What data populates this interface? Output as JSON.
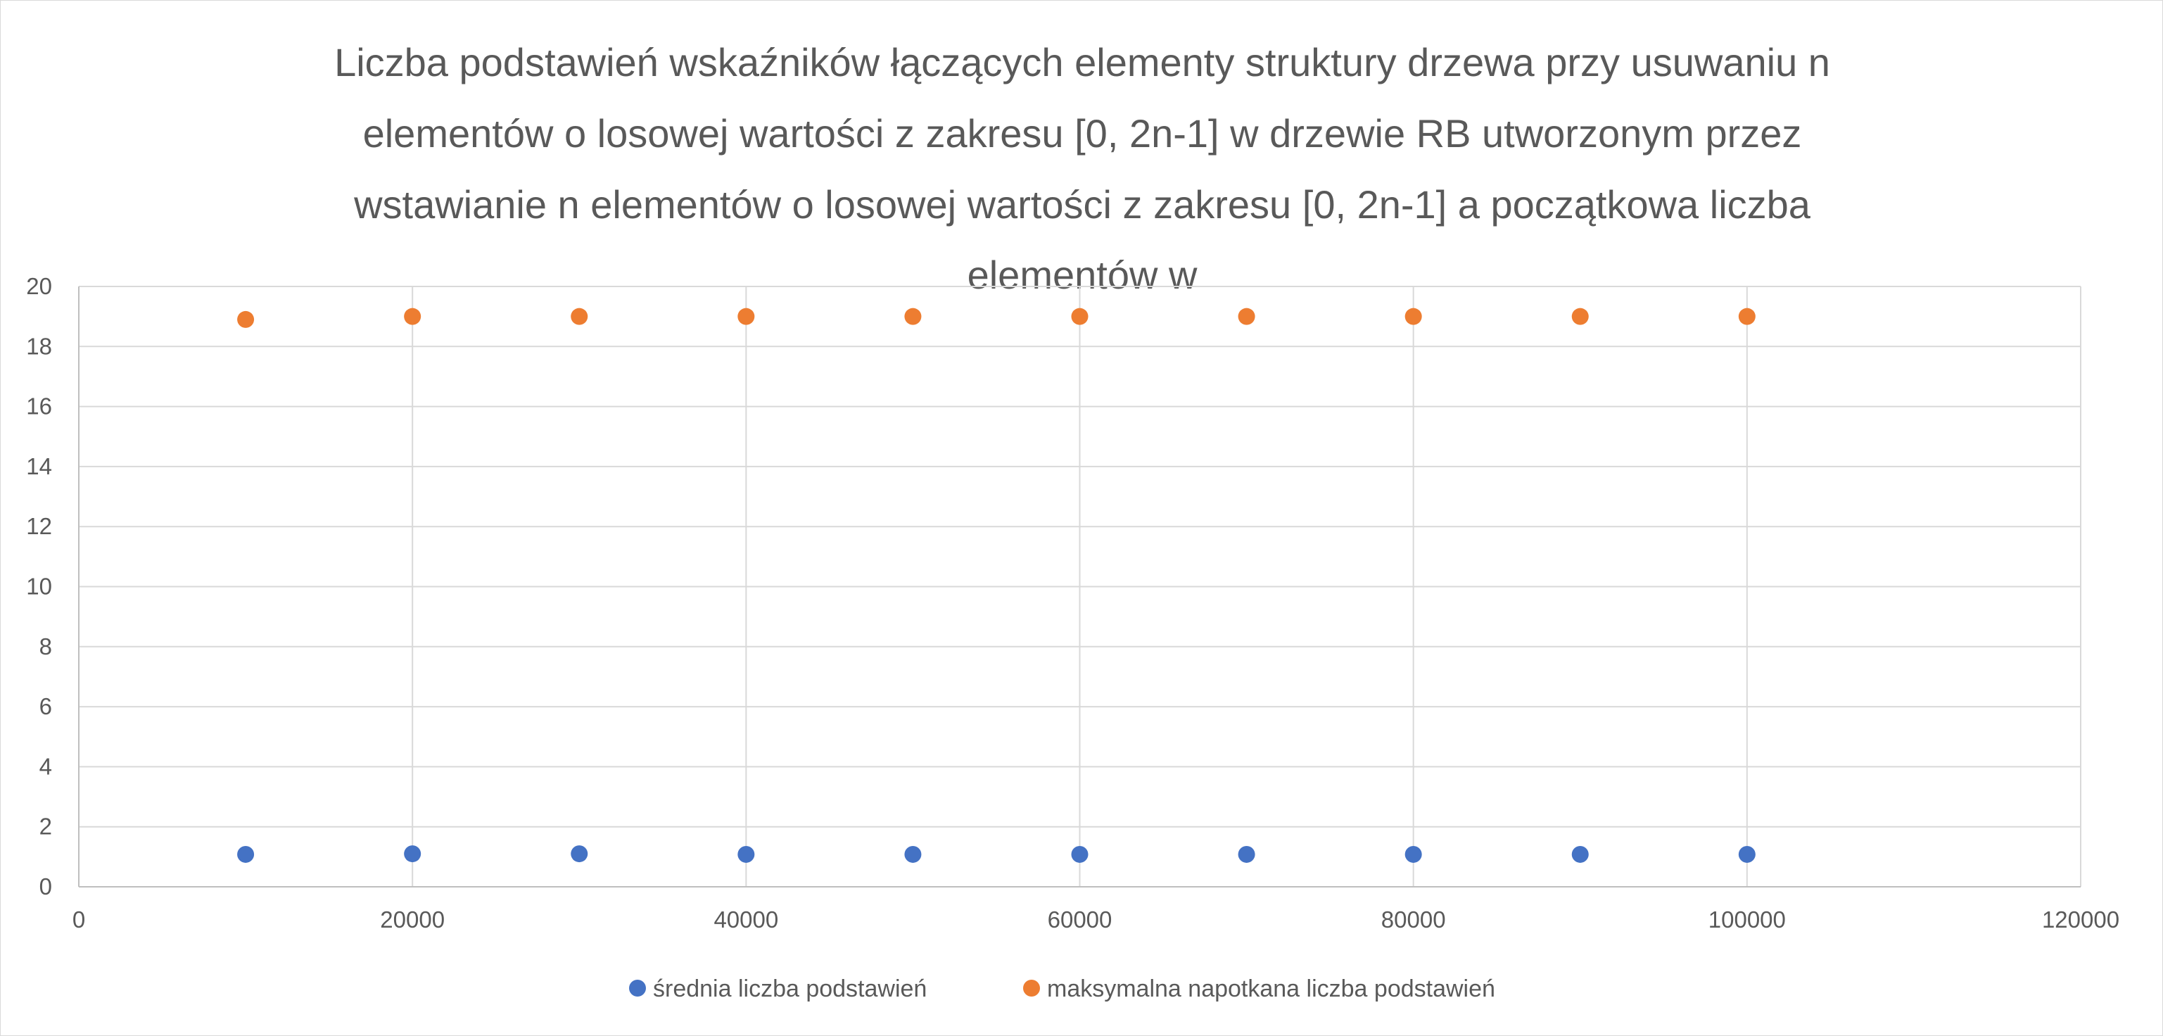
{
  "chart_data": {
    "type": "scatter",
    "title": "Liczba podstawień wskaźników łączących elementy struktury drzewa przy usuwaniu n\nelementów o losowej wartości z zakresu [0, 2n-1] w drzewie RB utworzonym przez\nwstawianie n elementów o losowej wartości z zakresu [0, 2n-1] a początkowa liczba\nelementów w",
    "xlabel": "",
    "ylabel": "",
    "xlim": [
      0,
      120000
    ],
    "ylim": [
      0,
      20
    ],
    "x_ticks": [
      0,
      20000,
      40000,
      60000,
      80000,
      100000,
      120000
    ],
    "y_ticks": [
      0,
      2,
      4,
      6,
      8,
      10,
      12,
      14,
      16,
      18,
      20
    ],
    "grid": true,
    "legend_position": "bottom",
    "x": [
      10000,
      20000,
      30000,
      40000,
      50000,
      60000,
      70000,
      80000,
      90000,
      100000
    ],
    "series": [
      {
        "name": "średnia liczba podstawień",
        "color": "#4472c4",
        "values": [
          1.08,
          1.1,
          1.1,
          1.08,
          1.08,
          1.08,
          1.08,
          1.08,
          1.08,
          1.08
        ]
      },
      {
        "name": "maksymalna napotkana liczba podstawień",
        "color": "#ed7d31",
        "values": [
          18.9,
          19,
          19,
          19,
          19,
          19,
          19,
          19,
          19,
          19
        ]
      }
    ]
  }
}
